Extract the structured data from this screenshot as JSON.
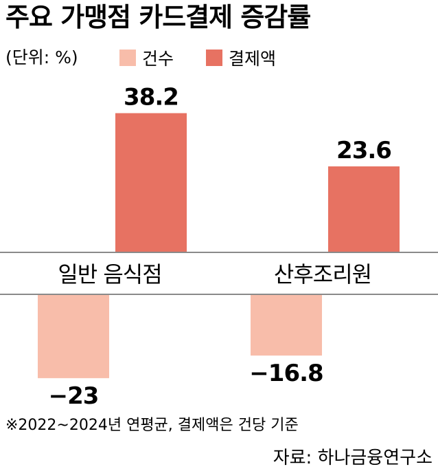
{
  "chart_data": {
    "type": "bar",
    "title": "주요 가맹점 카드결제 증감률",
    "unit_note": "(단위: %)",
    "categories": [
      "일반 음식점",
      "산후조리원"
    ],
    "series": [
      {
        "name": "건수",
        "values": [
          -23,
          -16.8
        ],
        "value_labels": [
          "−23",
          "−16.8"
        ],
        "color": "#f8bdaa"
      },
      {
        "name": "결제액",
        "values": [
          38.2,
          23.6
        ],
        "value_labels": [
          "38.2",
          "23.6"
        ],
        "color": "#e77262"
      }
    ],
    "ylim": [
      -30,
      45
    ],
    "grid": false,
    "legend": "top"
  },
  "footnote": "※2022~2024년 연평균, 결제액은 건당 기준",
  "source": "자료: 하나금융연구소",
  "colors": {
    "text": "#1a1a1a",
    "axis": "#8a8a8a"
  }
}
